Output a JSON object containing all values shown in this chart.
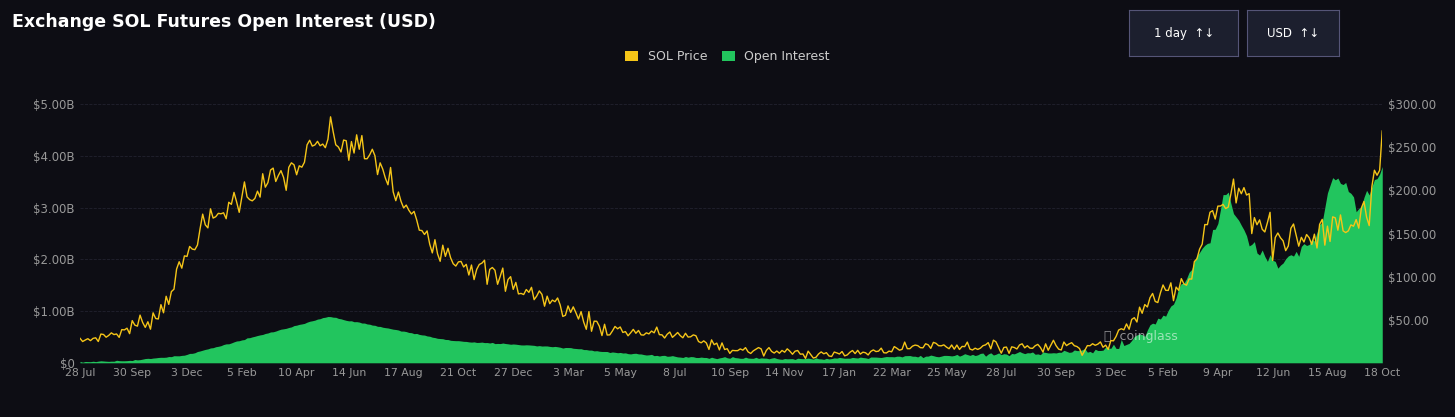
{
  "title": "Exchange SOL Futures Open Interest (USD)",
  "background_color": "#0d0d14",
  "plot_bg_color": "#0d0d14",
  "grid_color": "#2a2a3a",
  "sol_price_color": "#f5c518",
  "open_interest_color": "#22c55e",
  "left_yticks_labels": [
    "$0",
    "$1.00B",
    "$2.00B",
    "$3.00B",
    "$4.00B",
    "$5.00B"
  ],
  "left_yticks_vals": [
    0,
    1000000000,
    2000000000,
    3000000000,
    4000000000,
    5000000000
  ],
  "right_yticks_labels": [
    "$50.00",
    "$100.00",
    "$150.00",
    "$200.00",
    "$250.00",
    "$300.00"
  ],
  "right_yticks_vals": [
    50,
    100,
    150,
    200,
    250,
    300
  ],
  "left_ylim": [
    0,
    5000000000
  ],
  "right_ylim": [
    0,
    300
  ],
  "x_labels": [
    "28 Jul",
    "30 Sep",
    "3 Dec",
    "5 Feb",
    "10 Apr",
    "14 Jun",
    "17 Aug",
    "21 Oct",
    "27 Dec",
    "3 Mar",
    "5 May",
    "8 Jul",
    "10 Sep",
    "14 Nov",
    "17 Jan",
    "22 Mar",
    "25 May",
    "28 Jul",
    "30 Sep",
    "3 Dec",
    "5 Feb",
    "9 Apr",
    "12 Jun",
    "15 Aug",
    "18 Oct"
  ],
  "n_points": 500,
  "legend_sol": "SOL Price",
  "legend_oi": "Open Interest",
  "source": "coinglass"
}
